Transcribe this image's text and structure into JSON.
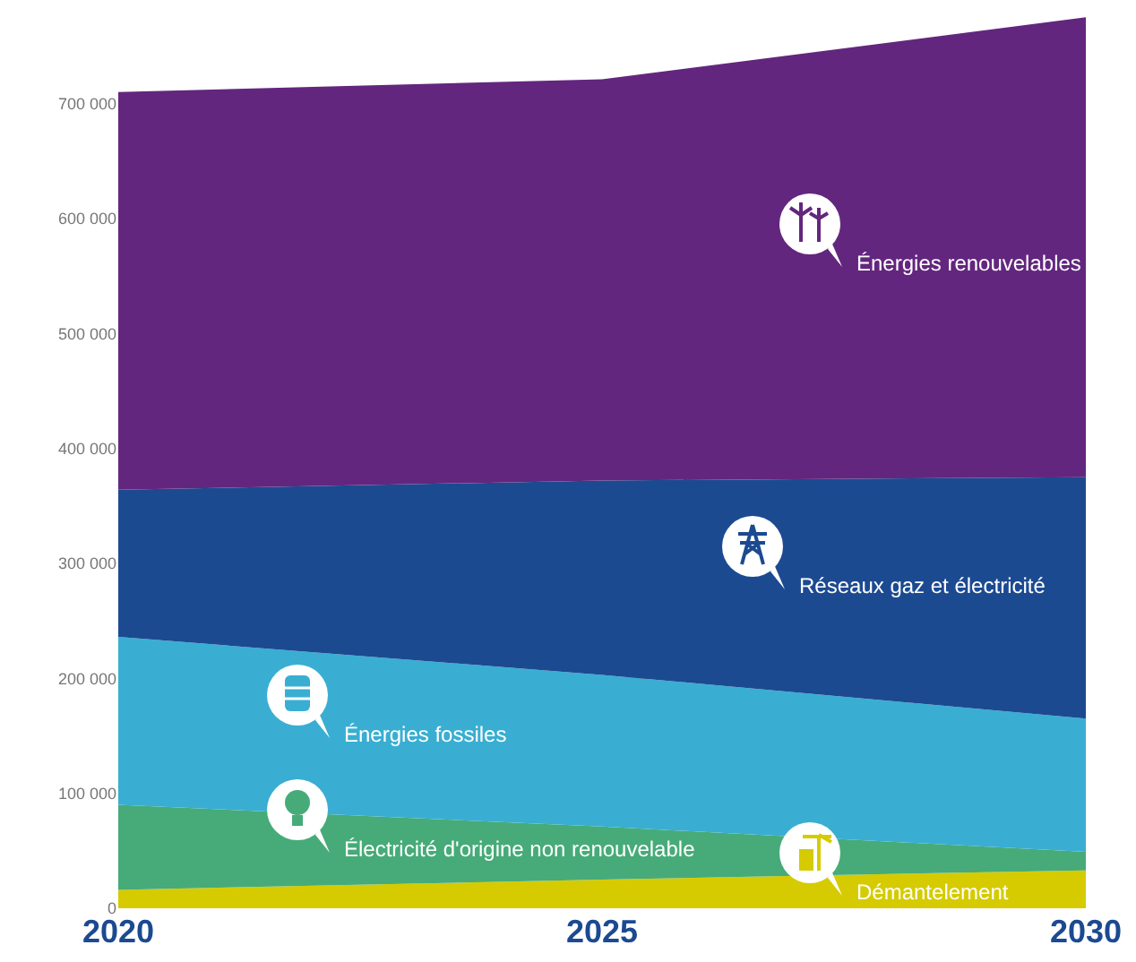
{
  "chart_data": {
    "type": "area",
    "stacked": true,
    "x": [
      2020,
      2025,
      2030
    ],
    "xlim": [
      2020,
      2030
    ],
    "xticks": [
      2020,
      2025,
      2030
    ],
    "ylim": [
      0,
      790000
    ],
    "yticks": [
      {
        "value": 0,
        "label": "0"
      },
      {
        "value": 100000,
        "label": "100 000"
      },
      {
        "value": 200000,
        "label": "200 000"
      },
      {
        "value": 300000,
        "label": "300 000"
      },
      {
        "value": 400000,
        "label": "400 000"
      },
      {
        "value": 500000,
        "label": "500 000"
      },
      {
        "value": 600000,
        "label": "600 000"
      },
      {
        "value": 700000,
        "label": "700 000"
      }
    ],
    "grid": "y",
    "legend": false,
    "series": [
      {
        "name": "Démantelement",
        "color": "#d5cb00",
        "values": [
          16000,
          25000,
          33000
        ]
      },
      {
        "name": "Électricité d'origine non renouvelable",
        "color": "#46ab78",
        "values": [
          74000,
          46000,
          16000
        ]
      },
      {
        "name": "Énergies fossiles",
        "color": "#39aed2",
        "values": [
          146000,
          132000,
          116000
        ]
      },
      {
        "name": "Réseaux gaz et électricité",
        "color": "#1c4a91",
        "values": [
          128000,
          169000,
          210000
        ]
      },
      {
        "name": "Énergies renouvelables",
        "color": "#63267e",
        "values": [
          346000,
          349000,
          400000
        ]
      }
    ]
  }
}
